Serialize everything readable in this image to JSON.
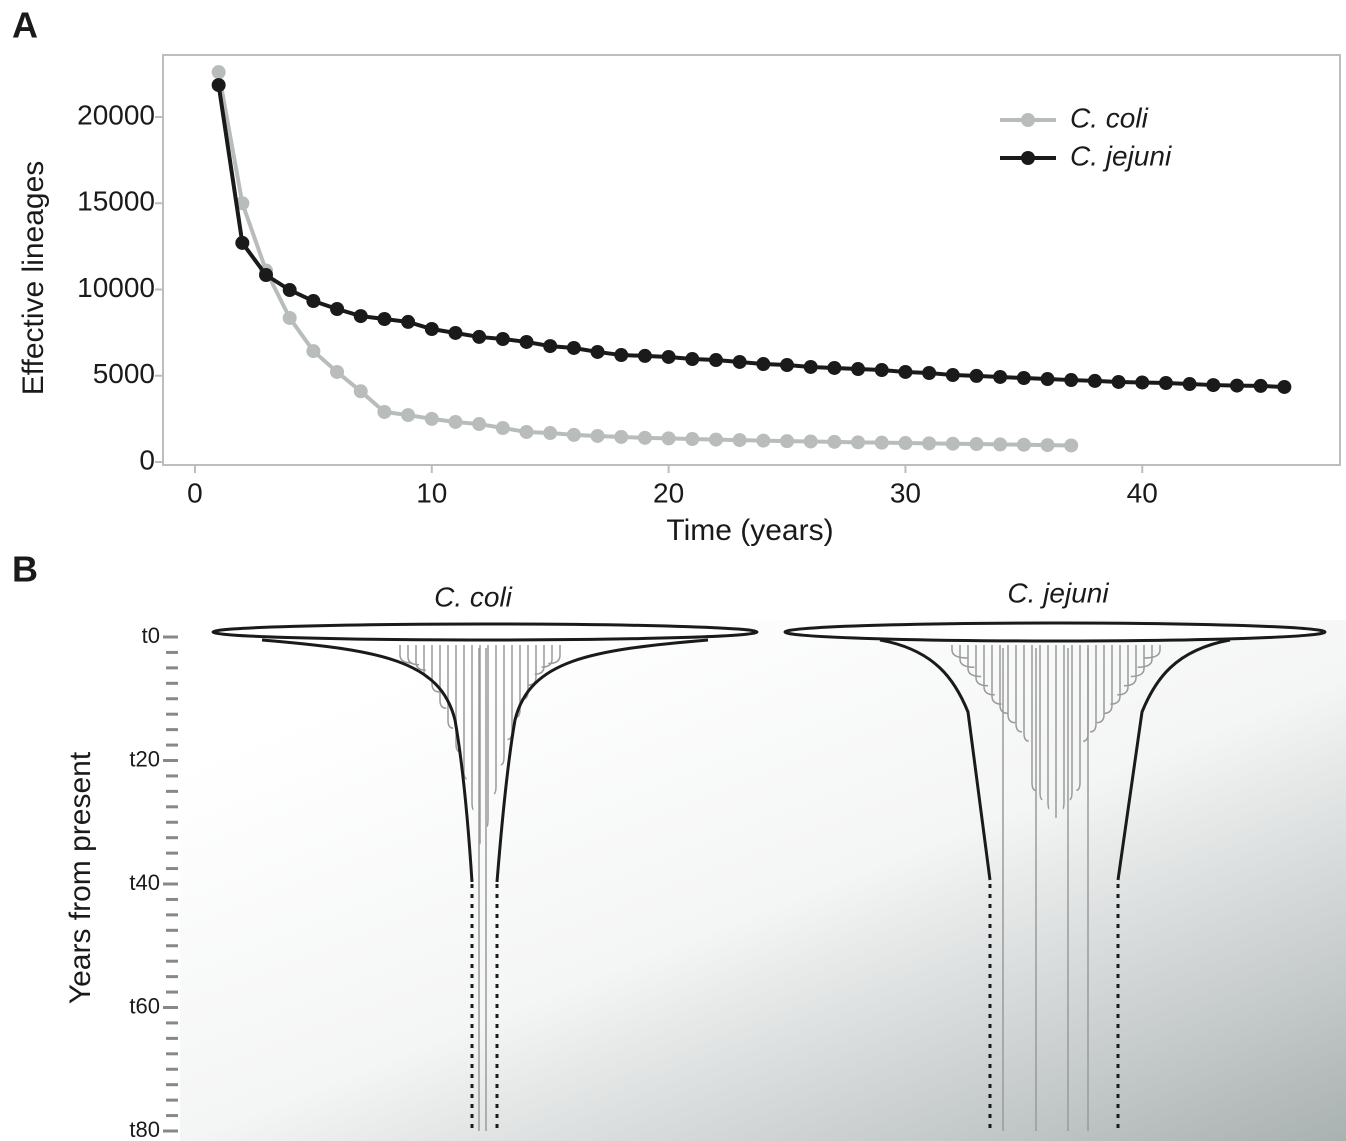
{
  "panel_a_label": "A",
  "chart_data": {
    "type": "line",
    "x_label": "Time (years)",
    "y_label": "Effective lineages",
    "xlim": [
      -1.35,
      48.35
    ],
    "ylim": [
      -174,
      23594
    ],
    "xticks": [
      0,
      10,
      20,
      30,
      40
    ],
    "yticks": [
      0,
      5000,
      10000,
      15000,
      20000
    ],
    "grid": false,
    "legend": "upper right",
    "series": [
      {
        "name": "C. coli",
        "color": "#b8bcbb",
        "x": [
          1,
          2,
          3,
          4,
          5,
          6,
          7,
          8,
          9,
          10,
          11,
          12,
          13,
          14,
          15,
          16,
          17,
          18,
          19,
          20,
          21,
          22,
          23,
          24,
          25,
          26,
          27,
          28,
          29,
          30,
          31,
          32,
          33,
          34,
          35,
          36,
          37
        ],
        "values": [
          22600,
          15000,
          11100,
          8350,
          6430,
          5220,
          4100,
          2900,
          2720,
          2500,
          2320,
          2200,
          1970,
          1740,
          1680,
          1570,
          1510,
          1450,
          1400,
          1370,
          1330,
          1300,
          1270,
          1240,
          1210,
          1190,
          1170,
          1140,
          1120,
          1100,
          1080,
          1060,
          1040,
          1020,
          1000,
          980,
          960
        ]
      },
      {
        "name": "C. jejuni",
        "color": "#1a1a1a",
        "x": [
          1,
          2,
          3,
          4,
          5,
          6,
          7,
          8,
          9,
          10,
          11,
          12,
          13,
          14,
          15,
          16,
          17,
          18,
          19,
          20,
          21,
          22,
          23,
          24,
          25,
          26,
          27,
          28,
          29,
          30,
          31,
          32,
          33,
          34,
          35,
          36,
          37,
          38,
          39,
          40,
          41,
          42,
          43,
          44,
          45,
          46
        ],
        "values": [
          21850,
          12700,
          10840,
          9970,
          9330,
          8870,
          8460,
          8290,
          8120,
          7710,
          7480,
          7250,
          7130,
          6960,
          6720,
          6610,
          6380,
          6200,
          6150,
          6090,
          5970,
          5910,
          5800,
          5680,
          5620,
          5510,
          5450,
          5390,
          5330,
          5220,
          5160,
          5040,
          4990,
          4930,
          4870,
          4810,
          4750,
          4700,
          4640,
          4610,
          4580,
          4520,
          4460,
          4430,
          4410,
          4350
        ]
      }
    ]
  },
  "panel_b": {
    "label": "B",
    "y_label": "Years from present",
    "tick_labels": [
      "t0",
      "t20",
      "t40",
      "t60",
      "t80"
    ],
    "titles": [
      "C. coli",
      "C. jejuni"
    ]
  }
}
